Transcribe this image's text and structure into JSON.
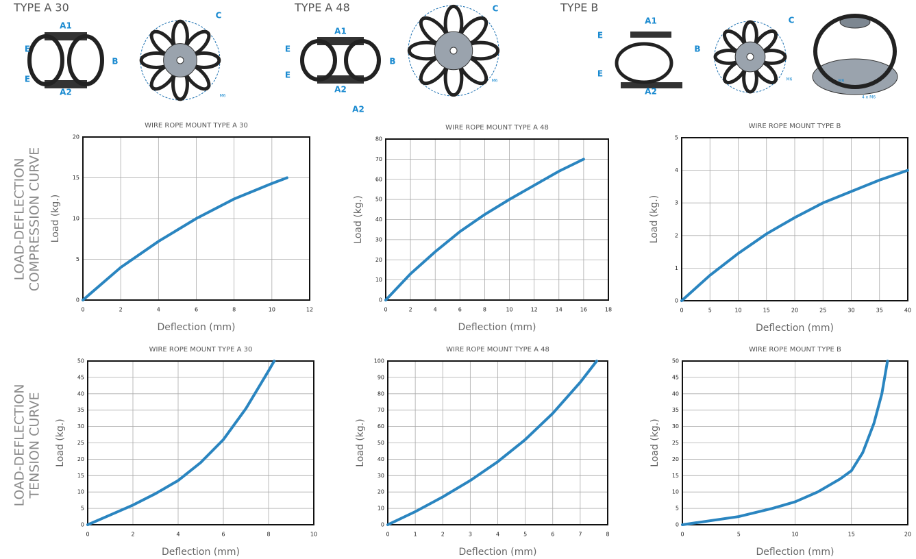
{
  "row_labels": [
    [
      "LOAD-DEFLECTION",
      "COMPRESSION CURVE"
    ],
    [
      "LOAD-DEFLECTION",
      "TENSION CURVE"
    ]
  ],
  "diagrams": [
    {
      "title": "TYPE A 30",
      "labels": [
        "A1",
        "E",
        "B",
        "E",
        "A2",
        "C",
        "M6"
      ]
    },
    {
      "title": "TYPE A 48",
      "labels": [
        "A1",
        "E",
        "B",
        "E",
        "A2",
        "C",
        "M6",
        "A2"
      ]
    },
    {
      "title": "TYPE B",
      "labels": [
        "A1",
        "E",
        "B",
        "E",
        "A2",
        "C",
        "M6",
        "M6",
        "4 x M6"
      ]
    }
  ],
  "chart_data": [
    {
      "type": "line",
      "title": "WIRE ROPE MOUNT TYPE A 30",
      "xlabel": "Deflection (mm)",
      "ylabel": "Load (kg.)",
      "x": [
        0,
        2,
        4,
        6,
        8,
        10,
        10.8
      ],
      "series": [
        {
          "color": "#2a85c0",
          "values": [
            0,
            4,
            7.2,
            10,
            12.4,
            14.3,
            15
          ]
        }
      ],
      "xlim": [
        0,
        12
      ],
      "xticks": [
        0,
        2,
        4,
        6,
        8,
        10,
        12
      ],
      "ylim": [
        0,
        20
      ],
      "yticks": [
        0,
        5,
        10,
        15,
        20
      ],
      "grid": true
    },
    {
      "type": "line",
      "title": "WIRE ROPE MOUNT TYPE A 48",
      "xlabel": "Deflection (mm)",
      "ylabel": "Load (kg.)",
      "x": [
        0,
        2,
        4,
        6,
        8,
        10,
        12,
        14,
        16
      ],
      "series": [
        {
          "color": "#2a85c0",
          "values": [
            0,
            13,
            24,
            34,
            42.5,
            50,
            57,
            64,
            70
          ]
        }
      ],
      "xlim": [
        0,
        18
      ],
      "xticks": [
        0,
        2,
        4,
        6,
        8,
        10,
        12,
        14,
        16,
        18
      ],
      "ylim": [
        0,
        80
      ],
      "yticks": [
        0,
        10,
        20,
        30,
        40,
        50,
        60,
        70,
        80
      ],
      "grid": true
    },
    {
      "type": "line",
      "title": "WIRE ROPE MOUNT TYPE B",
      "xlabel": "Deflection (mm)",
      "ylabel": "Load (kg.)",
      "x": [
        0,
        5,
        10,
        15,
        20,
        25,
        30,
        35,
        40
      ],
      "series": [
        {
          "color": "#2a85c0",
          "values": [
            0,
            0.78,
            1.45,
            2.05,
            2.55,
            3,
            3.35,
            3.7,
            4
          ]
        }
      ],
      "xlim": [
        0,
        40
      ],
      "xticks": [
        0,
        5,
        10,
        15,
        20,
        25,
        30,
        35,
        40
      ],
      "ylim": [
        0,
        5
      ],
      "yticks": [
        0,
        1,
        2,
        3,
        4,
        5
      ],
      "grid": true
    },
    {
      "type": "line",
      "title": "WIRE ROPE MOUNT TYPE A 30",
      "xlabel": "Deflection (mm)",
      "ylabel": "Load (kg.)",
      "x": [
        0,
        1,
        2,
        3,
        4,
        5,
        6,
        7,
        8,
        8.25
      ],
      "series": [
        {
          "color": "#2a85c0",
          "values": [
            0,
            3,
            6,
            9.5,
            13.5,
            19,
            26,
            35.5,
            47,
            50
          ]
        }
      ],
      "xlim": [
        0,
        10
      ],
      "xticks": [
        0,
        2,
        4,
        6,
        8,
        10
      ],
      "ylim": [
        0,
        50
      ],
      "yticks": [
        0,
        5,
        10,
        15,
        20,
        25,
        30,
        35,
        40,
        45,
        50
      ],
      "grid": true
    },
    {
      "type": "line",
      "title": "WIRE ROPE MOUNT TYPE A 48",
      "xlabel": "Deflection (mm)",
      "ylabel": "Load (kg.)",
      "x": [
        0,
        1,
        2,
        3,
        4,
        5,
        6,
        7,
        7.6
      ],
      "series": [
        {
          "color": "#2a85c0",
          "values": [
            0,
            8,
            17,
            27,
            38.5,
            52,
            68,
            87,
            100
          ]
        }
      ],
      "xlim": [
        0,
        8
      ],
      "xticks": [
        0,
        1,
        2,
        3,
        4,
        5,
        6,
        7,
        8
      ],
      "ylim": [
        0,
        100
      ],
      "yticks": [
        0,
        10,
        20,
        30,
        40,
        50,
        60,
        70,
        80,
        90,
        100
      ],
      "grid": true
    },
    {
      "type": "line",
      "title": "WIRE ROPE MOUNT TYPE B",
      "xlabel": "Deflection (mm)",
      "ylabel": "Load (kg.)",
      "x": [
        0,
        5,
        8,
        10,
        12,
        14,
        15,
        16,
        17,
        17.7,
        18.2
      ],
      "series": [
        {
          "color": "#2a85c0",
          "values": [
            0,
            2.5,
            5,
            7,
            10,
            14,
            16.5,
            22,
            31,
            40,
            50
          ]
        }
      ],
      "xlim": [
        0,
        20
      ],
      "xticks": [
        0,
        5,
        10,
        15,
        20
      ],
      "ylim": [
        0,
        50
      ],
      "yticks": [
        0,
        5,
        10,
        15,
        20,
        25,
        30,
        35,
        40,
        45,
        50
      ],
      "grid": true
    }
  ]
}
